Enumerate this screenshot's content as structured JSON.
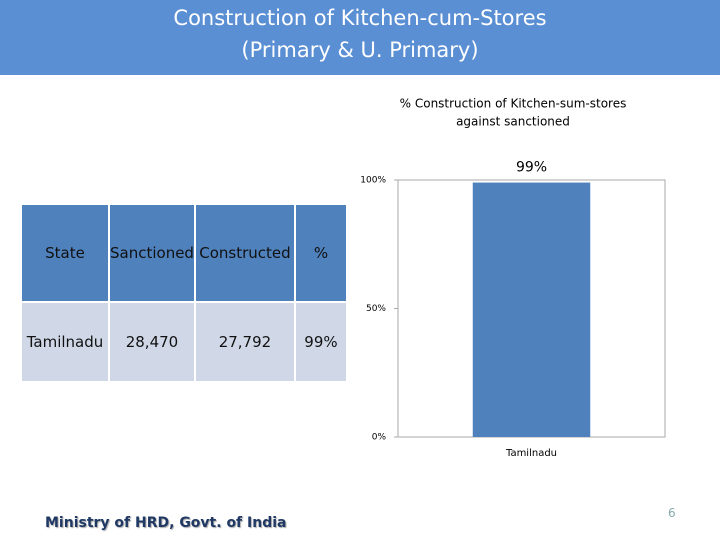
{
  "header": {
    "title": [
      "Construction of Kitchen-cum-Stores",
      "(Primary & U. Primary)"
    ]
  },
  "table": {
    "header": [
      "State",
      "Sanctioned",
      "Constructed",
      "%"
    ],
    "rows": [
      [
        "Tamilnadu",
        "28,470",
        "27,792",
        "99%"
      ]
    ]
  },
  "chart_data": {
    "type": "bar",
    "title": [
      "% Construction of Kitchen-sum-stores",
      "against sanctioned"
    ],
    "categories": [
      "Tamilnadu"
    ],
    "values": [
      99
    ],
    "value_labels": [
      "99%"
    ],
    "color": "#4f81bd",
    "ylim": [
      0,
      100
    ],
    "yticks": [
      {
        "value": 0,
        "label": "0%"
      },
      {
        "value": 50,
        "label": "50%"
      },
      {
        "value": 100,
        "label": "100%"
      }
    ]
  },
  "footer": {
    "source": "Ministry of HRD, Govt. of India",
    "page": "6"
  }
}
